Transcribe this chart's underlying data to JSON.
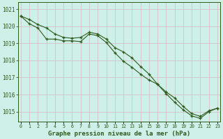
{
  "x": [
    0,
    1,
    2,
    3,
    4,
    5,
    6,
    7,
    8,
    9,
    10,
    11,
    12,
    13,
    14,
    15,
    16,
    17,
    18,
    19,
    20,
    21,
    22,
    23
  ],
  "line1": [
    1020.6,
    1020.4,
    1020.1,
    1019.9,
    1019.55,
    1019.35,
    1019.3,
    1019.35,
    1019.65,
    1019.55,
    1019.25,
    1018.75,
    1018.5,
    1018.15,
    1017.65,
    1017.2,
    1016.6,
    1016.15,
    1015.8,
    1015.3,
    1014.88,
    1014.72,
    1015.05,
    1015.2
  ],
  "line2": [
    1020.6,
    1020.15,
    1019.9,
    1019.25,
    1019.25,
    1019.15,
    1019.15,
    1019.1,
    1019.55,
    1019.45,
    1019.05,
    1018.45,
    1017.95,
    1017.6,
    1017.2,
    1016.85,
    1016.6,
    1016.05,
    1015.55,
    1015.1,
    1014.75,
    1014.6,
    1015.0,
    1015.2
  ],
  "line_color": "#2d5a1b",
  "bg_color": "#cef0e8",
  "grid_color_v": "#d4b8c0",
  "grid_color_h": "#d4b8c0",
  "xlabel": "Graphe pression niveau de la mer (hPa)",
  "ylim_min": 1014.4,
  "ylim_max": 1021.4,
  "yticks": [
    1015,
    1016,
    1017,
    1018,
    1019,
    1020,
    1021
  ],
  "xticks": [
    0,
    1,
    2,
    3,
    4,
    5,
    6,
    7,
    8,
    9,
    10,
    11,
    12,
    13,
    14,
    15,
    16,
    17,
    18,
    19,
    20,
    21,
    22,
    23
  ],
  "ylabel_fontsize": 5.5,
  "xlabel_fontsize": 6.5,
  "tick_label_color": "#2d5a1b",
  "spine_color": "#2d5a1b"
}
